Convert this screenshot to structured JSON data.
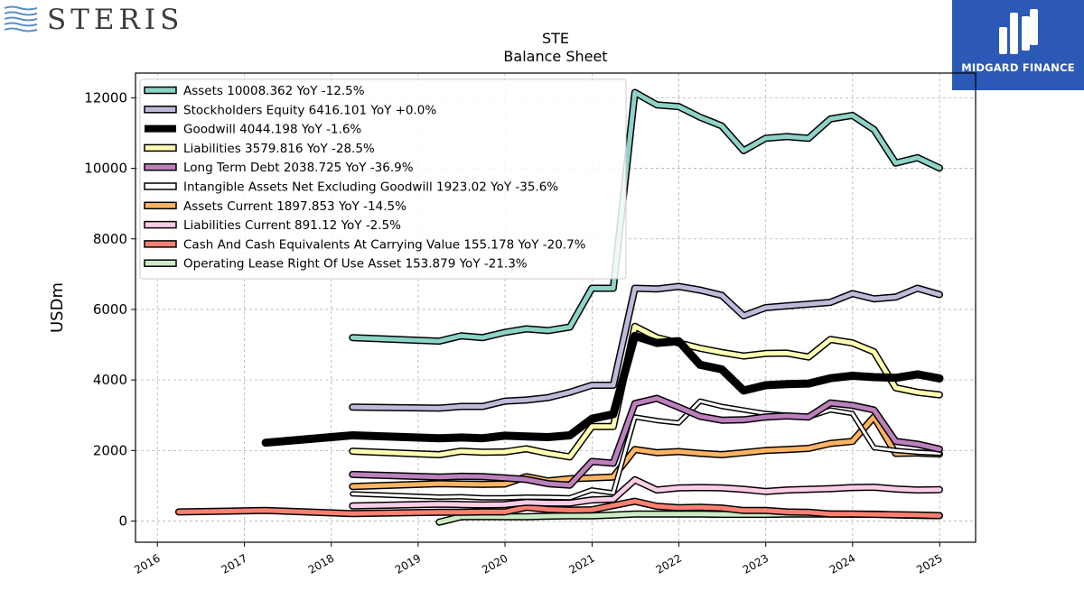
{
  "brand": {
    "company_logo_text": "STERIS",
    "badge_text": "MIDGARD FINANCE",
    "badge_color": "#2c59b6"
  },
  "chart_data": {
    "type": "line",
    "title": "STE",
    "subtitle": "Balance  Sheet",
    "ylabel": "USDm",
    "xlabel": "",
    "x_range": [
      "2015-10-01",
      "2025-06-01"
    ],
    "ylim": [
      -600,
      12700
    ],
    "yticks": [
      0,
      2000,
      4000,
      6000,
      8000,
      10000,
      12000
    ],
    "xticks": [
      "2016",
      "2017",
      "2018",
      "2019",
      "2020",
      "2021",
      "2022",
      "2023",
      "2024",
      "2025"
    ],
    "grid": true,
    "legend_position": "top-left",
    "series": [
      {
        "name": "Assets  10008.362 YoY -12.5%",
        "color": "#8dd3c7",
        "width": 5,
        "x": [
          "2018-03-31",
          "2019-03-31",
          "2019-06-30",
          "2019-09-30",
          "2019-12-31",
          "2020-03-31",
          "2020-06-30",
          "2020-09-30",
          "2020-12-31",
          "2021-03-31",
          "2021-06-30",
          "2021-09-30",
          "2021-12-31",
          "2022-03-31",
          "2022-06-30",
          "2022-09-30",
          "2022-12-31",
          "2023-03-31",
          "2023-06-30",
          "2023-09-30",
          "2023-12-31",
          "2024-03-31",
          "2024-06-30",
          "2024-09-30",
          "2024-12-31"
        ],
        "y": [
          5200,
          5100,
          5250,
          5200,
          5350,
          5450,
          5400,
          5500,
          6600,
          6600,
          12150,
          11800,
          11750,
          11450,
          11200,
          10500,
          10850,
          10900,
          10850,
          11400,
          11500,
          11100,
          10150,
          10300,
          10010
        ]
      },
      {
        "name": "Stockholders Equity  6416.101 YoY +0.0%",
        "color": "#bebada",
        "width": 5,
        "x": [
          "2018-03-31",
          "2019-03-31",
          "2019-06-30",
          "2019-09-30",
          "2019-12-31",
          "2020-03-31",
          "2020-06-30",
          "2020-09-30",
          "2020-12-31",
          "2021-03-31",
          "2021-06-30",
          "2021-09-30",
          "2021-12-31",
          "2022-03-31",
          "2022-06-30",
          "2022-09-30",
          "2022-12-31",
          "2023-03-31",
          "2023-06-30",
          "2023-09-30",
          "2023-12-31",
          "2024-03-31",
          "2024-06-30",
          "2024-09-30",
          "2024-12-31"
        ],
        "y": [
          3230,
          3200,
          3250,
          3250,
          3400,
          3430,
          3500,
          3650,
          3850,
          3850,
          6600,
          6580,
          6650,
          6550,
          6400,
          5820,
          6050,
          6100,
          6150,
          6200,
          6450,
          6300,
          6350,
          6600,
          6420
        ]
      },
      {
        "name": "Goodwill  4044.198 YoY -1.6%",
        "color": "#000000",
        "width": 9,
        "x": [
          "2017-03-31",
          "2018-03-31",
          "2019-03-31",
          "2019-06-30",
          "2019-09-30",
          "2019-12-31",
          "2020-03-31",
          "2020-06-30",
          "2020-09-30",
          "2020-12-31",
          "2021-03-31",
          "2021-06-30",
          "2021-09-30",
          "2021-12-31",
          "2022-03-31",
          "2022-06-30",
          "2022-09-30",
          "2022-12-31",
          "2023-03-31",
          "2023-06-30",
          "2023-09-30",
          "2023-12-31",
          "2024-03-31",
          "2024-06-30",
          "2024-09-30",
          "2024-12-31"
        ],
        "y": [
          2220,
          2430,
          2350,
          2370,
          2350,
          2420,
          2400,
          2380,
          2430,
          2900,
          3030,
          5250,
          5050,
          5100,
          4430,
          4300,
          3700,
          3850,
          3880,
          3900,
          4050,
          4120,
          4080,
          4060,
          4160,
          4044
        ]
      },
      {
        "name": "Liabilities  3579.816 YoY -28.5%",
        "color": "#ffffb3",
        "width": 5,
        "x": [
          "2018-03-31",
          "2019-03-31",
          "2019-06-30",
          "2019-09-30",
          "2019-12-31",
          "2020-03-31",
          "2020-06-30",
          "2020-09-30",
          "2020-12-31",
          "2021-03-31",
          "2021-06-30",
          "2021-09-30",
          "2021-12-31",
          "2022-03-31",
          "2022-06-30",
          "2022-09-30",
          "2022-12-31",
          "2023-03-31",
          "2023-06-30",
          "2023-09-30",
          "2023-12-31",
          "2024-03-31",
          "2024-06-30",
          "2024-09-30",
          "2024-12-31"
        ],
        "y": [
          1980,
          1880,
          1980,
          1950,
          1960,
          2050,
          1920,
          1820,
          2680,
          2680,
          5520,
          5200,
          5050,
          4900,
          4780,
          4680,
          4750,
          4760,
          4650,
          5150,
          5050,
          4800,
          3780,
          3650,
          3580
        ]
      },
      {
        "name": "Long Term Debt  2038.725 YoY -36.9%",
        "color": "#bc80bd",
        "width": 5,
        "x": [
          "2018-03-31",
          "2019-03-31",
          "2019-06-30",
          "2019-09-30",
          "2019-12-31",
          "2020-03-31",
          "2020-06-30",
          "2020-09-30",
          "2020-12-31",
          "2021-03-31",
          "2021-06-30",
          "2021-09-30",
          "2021-12-31",
          "2022-03-31",
          "2022-06-30",
          "2022-09-30",
          "2022-12-31",
          "2023-03-31",
          "2023-06-30",
          "2023-09-30",
          "2023-12-31",
          "2024-03-31",
          "2024-06-30",
          "2024-09-30",
          "2024-12-31"
        ],
        "y": [
          1320,
          1250,
          1270,
          1260,
          1220,
          1180,
          1060,
          1020,
          1690,
          1640,
          3330,
          3480,
          3230,
          2970,
          2860,
          2870,
          2950,
          2980,
          2950,
          3350,
          3280,
          3150,
          2260,
          2180,
          2040
        ]
      },
      {
        "name": "Intangible Assets Net Excluding Goodwill  1923.02 YoY -35.6%",
        "color": "#ffffff",
        "width": 3,
        "x": [
          "2018-03-31",
          "2019-03-31",
          "2019-06-30",
          "2019-09-30",
          "2019-12-31",
          "2020-03-31",
          "2020-06-30",
          "2020-09-30",
          "2020-12-31",
          "2021-03-31",
          "2021-06-30",
          "2021-09-30",
          "2021-12-31",
          "2022-03-31",
          "2022-06-30",
          "2022-09-30",
          "2022-12-31",
          "2023-03-31",
          "2023-06-30",
          "2023-09-30",
          "2023-12-31",
          "2024-03-31",
          "2024-06-30",
          "2024-09-30",
          "2024-12-31"
        ],
        "y": [
          770,
          680,
          690,
          660,
          660,
          680,
          670,
          660,
          880,
          800,
          2950,
          2850,
          2780,
          3400,
          3250,
          3150,
          3050,
          3000,
          2950,
          3150,
          3050,
          2080,
          2000,
          1950,
          1923
        ]
      },
      {
        "name": "Assets Current  1897.853 YoY -14.5%",
        "color": "#fdb462",
        "width": 5,
        "x": [
          "2018-03-31",
          "2019-03-31",
          "2019-06-30",
          "2019-09-30",
          "2019-12-31",
          "2020-03-31",
          "2020-06-30",
          "2020-09-30",
          "2020-12-31",
          "2021-03-31",
          "2021-06-30",
          "2021-09-30",
          "2021-12-31",
          "2022-03-31",
          "2022-06-30",
          "2022-09-30",
          "2022-12-31",
          "2023-03-31",
          "2023-06-30",
          "2023-09-30",
          "2023-12-31",
          "2024-03-31",
          "2024-06-30",
          "2024-09-30",
          "2024-12-31"
        ],
        "y": [
          980,
          1060,
          1050,
          1040,
          1050,
          1260,
          1140,
          1200,
          1220,
          1250,
          2030,
          1940,
          1970,
          1920,
          1880,
          1940,
          2000,
          2030,
          2060,
          2200,
          2260,
          2950,
          1920,
          1930,
          1900
        ]
      },
      {
        "name": "Liabilities Current  891.12 YoY -2.5%",
        "color": "#fccde5",
        "width": 5,
        "x": [
          "2018-03-31",
          "2019-03-31",
          "2019-06-30",
          "2019-09-30",
          "2019-12-31",
          "2020-03-31",
          "2020-06-30",
          "2020-09-30",
          "2020-12-31",
          "2021-03-31",
          "2021-06-30",
          "2021-09-30",
          "2021-12-31",
          "2022-03-31",
          "2022-06-30",
          "2022-09-30",
          "2022-12-31",
          "2023-03-31",
          "2023-06-30",
          "2023-09-30",
          "2023-12-31",
          "2024-03-31",
          "2024-06-30",
          "2024-09-30",
          "2024-12-31"
        ],
        "y": [
          430,
          480,
          470,
          460,
          470,
          530,
          510,
          510,
          600,
          620,
          1170,
          880,
          940,
          950,
          940,
          900,
          840,
          880,
          900,
          920,
          950,
          960,
          910,
          880,
          890
        ]
      },
      {
        "name": "Cash And Cash Equivalents At Carrying Value  155.178 YoY -20.7%",
        "color": "#fb8072",
        "width": 5,
        "x": [
          "2016-03-31",
          "2017-03-31",
          "2018-03-31",
          "2019-03-31",
          "2019-06-30",
          "2019-09-30",
          "2019-12-31",
          "2020-03-31",
          "2020-06-30",
          "2020-09-30",
          "2020-12-31",
          "2021-03-31",
          "2021-06-30",
          "2021-09-30",
          "2021-12-31",
          "2022-03-31",
          "2022-06-30",
          "2022-09-30",
          "2022-12-31",
          "2023-03-31",
          "2023-06-30",
          "2023-09-30",
          "2023-12-31",
          "2024-03-31",
          "2024-06-30",
          "2024-09-30",
          "2024-12-31"
        ],
        "y": [
          260,
          300,
          210,
          250,
          250,
          260,
          260,
          390,
          330,
          310,
          320,
          440,
          560,
          420,
          380,
          390,
          370,
          300,
          300,
          260,
          250,
          200,
          200,
          190,
          180,
          170,
          155
        ]
      },
      {
        "name": "Operating Lease Right Of Use Asset  153.879 YoY -21.3%",
        "color": "#ccebc5",
        "width": 5,
        "x": [
          "2019-03-31",
          "2019-06-30",
          "2019-09-30",
          "2019-12-31",
          "2020-03-31",
          "2020-06-30",
          "2020-09-30",
          "2020-12-31",
          "2021-03-31",
          "2021-06-30",
          "2021-09-30",
          "2021-12-31",
          "2022-03-31",
          "2022-06-30",
          "2022-09-30",
          "2022-12-31",
          "2023-03-31",
          "2023-06-30",
          "2023-09-30",
          "2023-12-31",
          "2024-03-31",
          "2024-06-30",
          "2024-09-30",
          "2024-12-31"
        ],
        "y": [
          -30,
          120,
          130,
          120,
          120,
          140,
          150,
          150,
          170,
          200,
          200,
          200,
          200,
          190,
          190,
          190,
          200,
          200,
          200,
          195,
          195,
          175,
          160,
          154
        ]
      }
    ]
  }
}
